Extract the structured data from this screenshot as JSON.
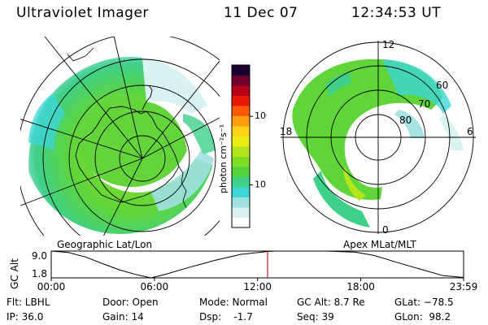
{
  "header": {
    "instrument": "Ultraviolet Imager",
    "date": "11 Dec 07",
    "time": "12:34:53 UT"
  },
  "geo_panel": {
    "label": "Geographic Lat/Lon"
  },
  "apex_panel": {
    "label": "Apex MLat/MLT",
    "mlt_labels": [
      "12",
      "18",
      "6",
      "0"
    ],
    "mlat_labels": [
      "60",
      "70",
      "80"
    ]
  },
  "colorbar": {
    "unit_label": "photon cm⁻²s⁻¹",
    "tick_labels": [
      "100",
      "10"
    ],
    "tick_values": [
      100,
      10
    ],
    "range": [
      2.4,
      560
    ],
    "scale": "log",
    "colors": [
      "#ffffff",
      "#d9f2f2",
      "#9fe0e0",
      "#3dd6d6",
      "#3fd08a",
      "#52d33c",
      "#7fdc24",
      "#b4e51a",
      "#e8ec15",
      "#ffd21a",
      "#ff9e10",
      "#ff5a08",
      "#e81808",
      "#b40018",
      "#70002e",
      "#1a0030"
    ]
  },
  "altitude_plot": {
    "ylabel": "GC Alt",
    "y_ticks": [
      "9.0",
      "1.8"
    ],
    "y_tick_values": [
      9.0,
      1.8
    ],
    "x_ticks": [
      "00:00",
      "06:00",
      "12:00",
      "18:00",
      "23:59"
    ],
    "x_tick_values_hours": [
      0,
      6,
      12,
      18,
      23.98
    ],
    "current_time_hours": 12.58
  },
  "chart_data": {
    "type": "line",
    "title": "",
    "xlabel": "",
    "ylabel": "GC Alt",
    "x": [
      0,
      1,
      2,
      3,
      4,
      5,
      5.8,
      6.6,
      8,
      9.5,
      11,
      12.6,
      13,
      14,
      16,
      17.7,
      18.8,
      20,
      21.5,
      22.8,
      23.98
    ],
    "y": [
      9.0,
      8.6,
      7.4,
      5.6,
      3.9,
      2.6,
      1.8,
      2.7,
      4.6,
      6.5,
      8.1,
      8.9,
      9.0,
      9.0,
      9.0,
      8.7,
      7.8,
      6.1,
      4.1,
      2.4,
      1.9
    ],
    "xlim": [
      0,
      23.98
    ],
    "ylim": [
      1.8,
      9.0
    ],
    "grid": false
  },
  "footer": {
    "filter": "Flt: LBHL",
    "ip": "IP: 36.0",
    "door": "Door: Open",
    "gain": "Gain: 14",
    "mode": "Mode: Normal",
    "dsp": "Dsp:    -1.7",
    "gc_alt": "GC Alt: 8.7 Re",
    "seq": "Seq: 39",
    "glat": "GLat: −78.5",
    "glon": "GLon:  98.2"
  }
}
